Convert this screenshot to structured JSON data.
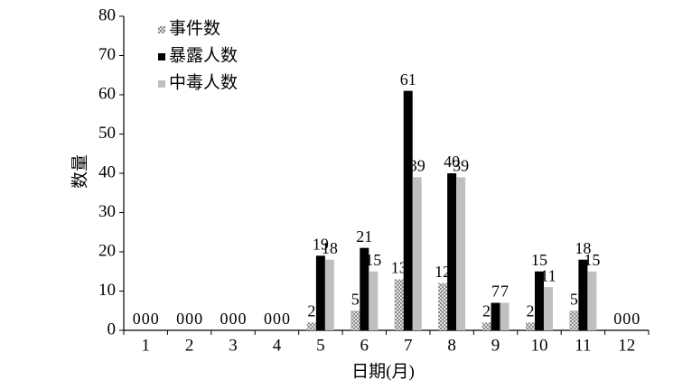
{
  "chart_data": {
    "type": "bar",
    "x_label": "日期(月)",
    "y_label": "数量",
    "categories": [
      "1",
      "2",
      "3",
      "4",
      "5",
      "6",
      "7",
      "8",
      "9",
      "10",
      "11",
      "12"
    ],
    "series": [
      {
        "name": "事件数",
        "color": "pattern",
        "values": [
          0,
          0,
          0,
          0,
          2,
          5,
          13,
          12,
          2,
          2,
          5,
          0
        ]
      },
      {
        "name": "暴露人数",
        "color": "#000000",
        "values": [
          0,
          0,
          0,
          0,
          19,
          21,
          61,
          40,
          7,
          15,
          18,
          0
        ]
      },
      {
        "name": "中毒人数",
        "color": "#bfbfbf",
        "values": [
          0,
          0,
          0,
          0,
          18,
          15,
          39,
          39,
          7,
          11,
          15,
          0
        ]
      }
    ],
    "ylim": [
      0,
      80
    ],
    "yticks": [
      0,
      10,
      20,
      30,
      40,
      50,
      60,
      70,
      80
    ],
    "grid": false,
    "legend": "top-left"
  }
}
